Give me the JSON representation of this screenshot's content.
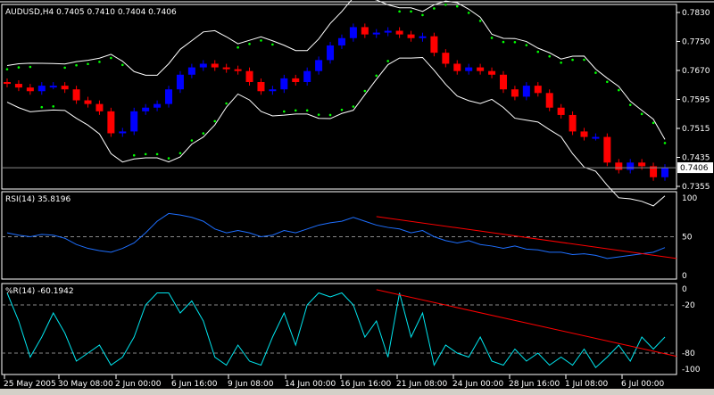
{
  "header": {
    "symbol_info": "AUDUSD,H4  0.7405 0.7410 0.7404 0.7406",
    "rsi_label": "RSI(14) 35.8196",
    "wpr_label": "%R(14) -60.1942"
  },
  "chart_data": [
    {
      "type": "candlestick",
      "title": "AUDUSD,H4",
      "ylim": [
        0.734,
        0.7845
      ],
      "y_ticks": [
        "0.7830",
        "0.7750",
        "0.7670",
        "0.7595",
        "0.7515",
        "0.7435",
        "0.7355"
      ],
      "current_price": "0.7406",
      "x_ticks": [
        "25 May 2005",
        "30 May 08:00",
        "2 Jun 00:00",
        "6 Jun 16:00",
        "9 Jun 08:00",
        "14 Jun 00:00",
        "16 Jun 16:00",
        "21 Jun 08:00",
        "24 Jun 00:00",
        "28 Jun 16:00",
        "1 Jul 08:00",
        "6 Jul 00:00"
      ],
      "close": [
        0.7635,
        0.7625,
        0.7615,
        0.763,
        0.763,
        0.762,
        0.759,
        0.758,
        0.756,
        0.75,
        0.7505,
        0.756,
        0.757,
        0.758,
        0.762,
        0.766,
        0.768,
        0.769,
        0.768,
        0.7675,
        0.767,
        0.764,
        0.7615,
        0.762,
        0.765,
        0.764,
        0.767,
        0.77,
        0.774,
        0.776,
        0.779,
        0.777,
        0.7775,
        0.778,
        0.777,
        0.776,
        0.7765,
        0.772,
        0.769,
        0.767,
        0.768,
        0.767,
        0.766,
        0.762,
        0.76,
        0.763,
        0.761,
        0.757,
        0.755,
        0.7505,
        0.749,
        0.749,
        0.742,
        0.74,
        0.742,
        0.741,
        0.738,
        0.7406
      ],
      "colors": {
        "up": "#0000ff",
        "down": "#ff0000",
        "sar": "#00ff00",
        "bands": "#ffffff"
      }
    },
    {
      "type": "line",
      "title": "RSI(14) 35.8196",
      "ylim": [
        0,
        100
      ],
      "y_ticks": [
        "100",
        "50",
        "0"
      ],
      "levels": [
        50
      ],
      "values": [
        55,
        52,
        50,
        53,
        52,
        48,
        40,
        35,
        32,
        30,
        35,
        42,
        55,
        70,
        80,
        78,
        75,
        70,
        60,
        55,
        58,
        55,
        50,
        52,
        58,
        55,
        60,
        65,
        68,
        70,
        75,
        70,
        65,
        62,
        60,
        55,
        58,
        50,
        45,
        42,
        45,
        40,
        38,
        35,
        38,
        34,
        33,
        30,
        30,
        27,
        28,
        26,
        22,
        24,
        26,
        28,
        30,
        36
      ],
      "trendline": {
        "from": 76,
        "to": 22,
        "color": "#ff0000"
      },
      "color": "#1e6fff"
    },
    {
      "type": "line",
      "title": "%R(14) -60.1942",
      "ylim": [
        -100,
        0
      ],
      "y_ticks": [
        "0",
        "-20",
        "-80",
        "-100"
      ],
      "levels": [
        -20,
        -80
      ],
      "values": [
        -5,
        -40,
        -85,
        -60,
        -30,
        -55,
        -90,
        -80,
        -70,
        -95,
        -85,
        -60,
        -20,
        -5,
        -5,
        -30,
        -15,
        -40,
        -85,
        -95,
        -70,
        -90,
        -95,
        -60,
        -30,
        -70,
        -20,
        -5,
        -10,
        -5,
        -20,
        -60,
        -40,
        -85,
        -5,
        -60,
        -30,
        -95,
        -70,
        -80,
        -85,
        -60,
        -90,
        -95,
        -75,
        -90,
        -80,
        -95,
        -85,
        -95,
        -75,
        -98,
        -85,
        -70,
        -90,
        -60,
        -75,
        -60
      ],
      "trendline": {
        "from": -1,
        "to": -84,
        "color": "#ff0000"
      },
      "color": "#00e5ee"
    }
  ]
}
